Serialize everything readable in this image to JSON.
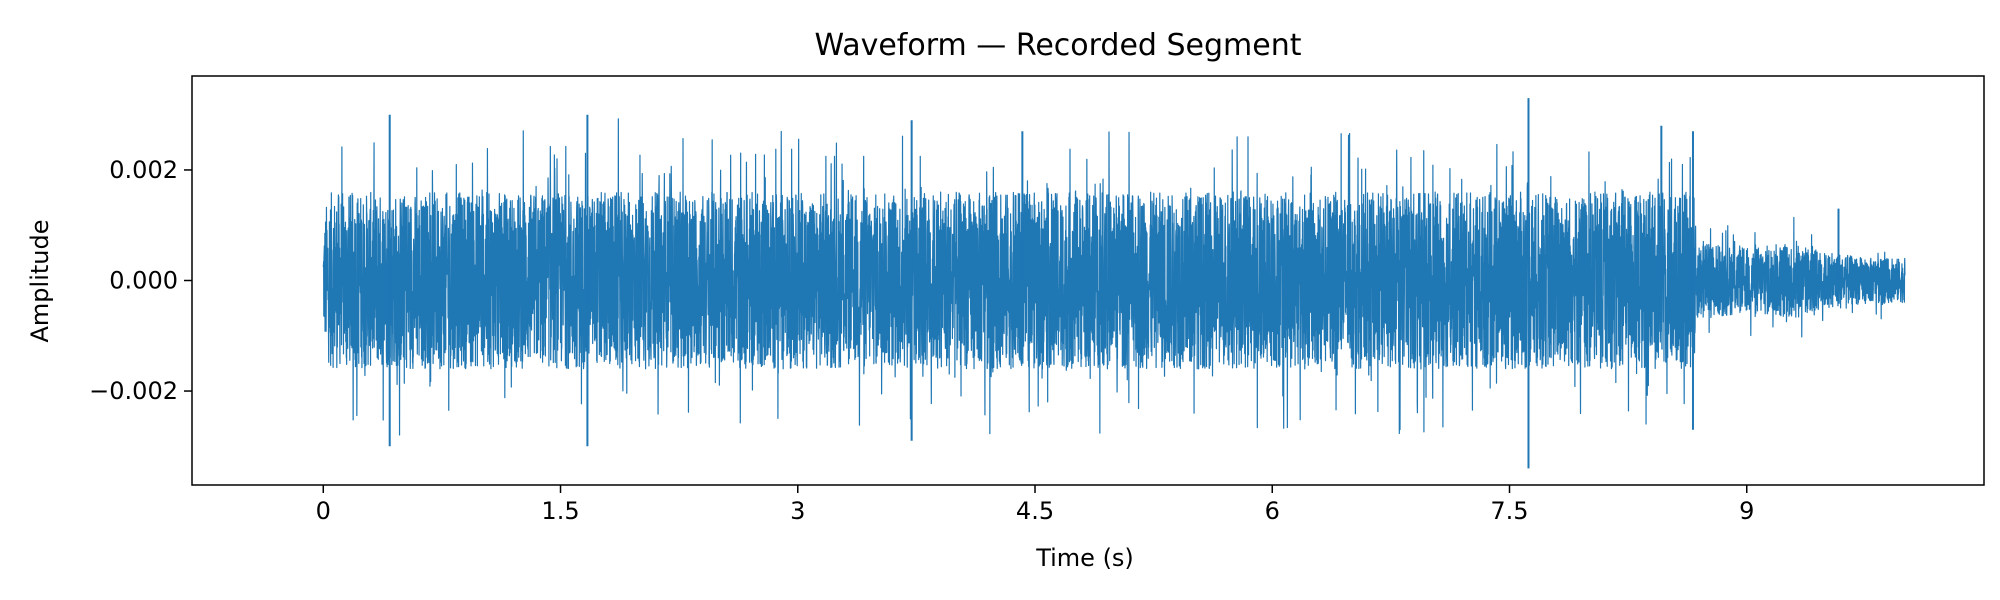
{
  "chart_data": {
    "type": "line",
    "title": "Waveform — Recorded Segment",
    "xlabel": "Time (s)",
    "ylabel": "Amplitude",
    "xlim": [
      -0.83,
      10.5
    ],
    "ylim": [
      -0.0037,
      0.0037
    ],
    "x_ticks": [
      0,
      1.5,
      3,
      4.5,
      6,
      7.5,
      9
    ],
    "x_tick_labels": [
      "0",
      "1.5",
      "3",
      "4.5",
      "6",
      "7.5",
      "9"
    ],
    "y_ticks": [
      -0.002,
      0,
      0.002
    ],
    "y_tick_labels": [
      "−0.002",
      "0.000",
      "0.002"
    ],
    "grid": false,
    "legend": null,
    "series": [
      {
        "color": "#1f77b4",
        "duration": 10.0,
        "envelope": {
          "x": [
            0,
            0.02,
            0.05,
            0.5,
            1.0,
            1.5,
            2.0,
            2.5,
            3.0,
            3.5,
            4.0,
            4.5,
            5.0,
            5.5,
            6.0,
            6.5,
            7.0,
            7.5,
            8.0,
            8.5,
            8.67,
            8.68,
            9.0,
            9.3,
            9.5,
            9.8,
            10.0
          ],
          "y": [
            0.0009,
            0.0014,
            0.0016,
            0.0016,
            0.0016,
            0.0016,
            0.0016,
            0.0016,
            0.0016,
            0.0016,
            0.0016,
            0.0016,
            0.0016,
            0.0016,
            0.0016,
            0.0016,
            0.0016,
            0.0016,
            0.0016,
            0.0016,
            0.0016,
            0.0007,
            0.0006,
            0.0007,
            0.0005,
            0.0004,
            0.0004
          ]
        },
        "peaks": [
          {
            "x": 0.42,
            "y": 0.003
          },
          {
            "x": 0.42,
            "y": -0.003
          },
          {
            "x": 1.67,
            "y": 0.003
          },
          {
            "x": 1.67,
            "y": -0.003
          },
          {
            "x": 3.72,
            "y": 0.0029
          },
          {
            "x": 3.72,
            "y": -0.0029
          },
          {
            "x": 4.42,
            "y": 0.0027
          },
          {
            "x": 7.62,
            "y": 0.0033
          },
          {
            "x": 7.62,
            "y": -0.0034
          },
          {
            "x": 8.46,
            "y": 0.0028
          },
          {
            "x": 8.66,
            "y": 0.0027
          },
          {
            "x": 8.66,
            "y": -0.0027
          },
          {
            "x": 9.58,
            "y": 0.0013
          }
        ]
      }
    ]
  }
}
